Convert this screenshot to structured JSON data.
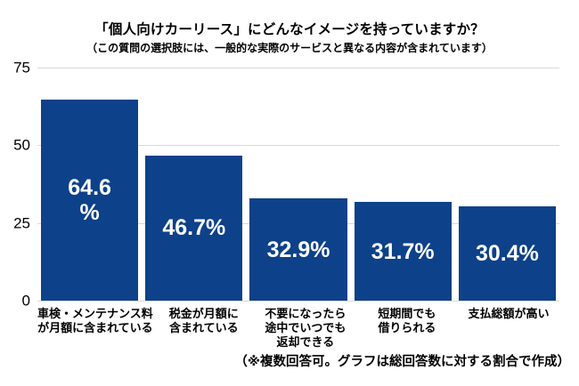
{
  "chart_data": {
    "type": "bar",
    "title": "「個人向けカーリース」にどんなイメージを持っていますか？",
    "subtitle": "（この質問の選択肢には、一般的な実際のサービスと異なる内容が含まれています）",
    "footnote": "（※複数回答可。グラフは総回答数に対する割合で作成）",
    "categories": [
      "車検・メンテナンス料が月額に含まれている",
      "税金が月額に含まれている",
      "不要になったら途中でいつでも返却できる",
      "短期間でも借りられる",
      "支払総額が高い"
    ],
    "category_label_lines": [
      [
        "車検・メンテナンス料",
        "が月額に含まれている"
      ],
      [
        "税金が月額に",
        "含まれている"
      ],
      [
        "不要になったら",
        "途中でいつでも",
        "返却できる"
      ],
      [
        "短期間でも",
        "借りられる"
      ],
      [
        "支払総額が高い"
      ]
    ],
    "values": [
      64.6,
      46.7,
      32.9,
      31.7,
      30.4
    ],
    "value_labels": [
      "64.6%",
      "46.7%",
      "32.9%",
      "31.7%",
      "30.4%"
    ],
    "value_label_lines": [
      [
        "64.6",
        "%"
      ],
      [
        "46.7%"
      ],
      [
        "32.9%"
      ],
      [
        "31.7%"
      ],
      [
        "30.4%"
      ]
    ],
    "unit": "%",
    "xlabel": "",
    "ylabel": "",
    "ylim": [
      0,
      75
    ],
    "yticks": [
      75,
      50,
      25,
      0
    ],
    "grid": true,
    "legend": false,
    "colors": {
      "bar": "#0D4189",
      "value_label": "#FFFFFF",
      "gridline": "#D9D9D9",
      "text": "#000000",
      "background": "#FFFFFF"
    }
  }
}
